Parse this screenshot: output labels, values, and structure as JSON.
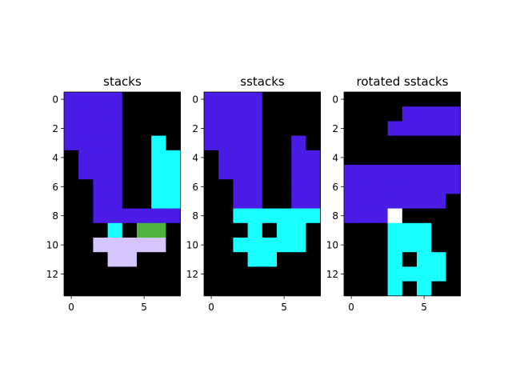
{
  "palette": {
    "0": "#000000",
    "1": "#4a1ce6",
    "2": "#19ffff",
    "3": "#4db33d",
    "4": "#d4c4ff",
    "5": "#ffffff"
  },
  "chart_data": [
    {
      "type": "heatmap",
      "title": "stacks",
      "xticks": [
        0,
        5
      ],
      "yticks": [
        0,
        2,
        4,
        6,
        8,
        10,
        12
      ],
      "xlim": [
        -0.5,
        7.5
      ],
      "ylim": [
        13.5,
        -0.5
      ],
      "grid": [
        [
          1,
          1,
          1,
          1,
          0,
          0,
          0,
          0
        ],
        [
          1,
          1,
          1,
          1,
          0,
          0,
          0,
          0
        ],
        [
          1,
          1,
          1,
          1,
          0,
          0,
          0,
          0
        ],
        [
          1,
          1,
          1,
          1,
          0,
          0,
          2,
          0
        ],
        [
          0,
          1,
          1,
          1,
          0,
          0,
          2,
          2
        ],
        [
          0,
          1,
          1,
          1,
          0,
          0,
          2,
          2
        ],
        [
          0,
          0,
          1,
          1,
          0,
          0,
          2,
          2
        ],
        [
          0,
          0,
          1,
          1,
          0,
          0,
          2,
          2
        ],
        [
          0,
          0,
          1,
          1,
          1,
          1,
          1,
          1
        ],
        [
          0,
          0,
          0,
          2,
          0,
          3,
          3,
          0
        ],
        [
          0,
          0,
          4,
          4,
          4,
          4,
          4,
          0
        ],
        [
          0,
          0,
          0,
          4,
          4,
          0,
          0,
          0
        ],
        [
          0,
          0,
          0,
          0,
          0,
          0,
          0,
          0
        ],
        [
          0,
          0,
          0,
          0,
          0,
          0,
          0,
          0
        ]
      ]
    },
    {
      "type": "heatmap",
      "title": "sstacks",
      "xticks": [
        0,
        5
      ],
      "yticks": [
        0,
        2,
        4,
        6,
        8,
        10,
        12
      ],
      "xlim": [
        -0.5,
        7.5
      ],
      "ylim": [
        13.5,
        -0.5
      ],
      "grid": [
        [
          1,
          1,
          1,
          1,
          0,
          0,
          0,
          0
        ],
        [
          1,
          1,
          1,
          1,
          0,
          0,
          0,
          0
        ],
        [
          1,
          1,
          1,
          1,
          0,
          0,
          0,
          0
        ],
        [
          1,
          1,
          1,
          1,
          0,
          0,
          1,
          0
        ],
        [
          0,
          1,
          1,
          1,
          0,
          0,
          1,
          1
        ],
        [
          0,
          1,
          1,
          1,
          0,
          0,
          1,
          1
        ],
        [
          0,
          0,
          1,
          1,
          0,
          0,
          1,
          1
        ],
        [
          0,
          0,
          1,
          1,
          0,
          0,
          1,
          1
        ],
        [
          0,
          0,
          2,
          2,
          2,
          2,
          2,
          2
        ],
        [
          0,
          0,
          0,
          2,
          0,
          2,
          2,
          0
        ],
        [
          0,
          0,
          2,
          2,
          2,
          2,
          2,
          0
        ],
        [
          0,
          0,
          0,
          2,
          2,
          0,
          0,
          0
        ],
        [
          0,
          0,
          0,
          0,
          0,
          0,
          0,
          0
        ],
        [
          0,
          0,
          0,
          0,
          0,
          0,
          0,
          0
        ]
      ]
    },
    {
      "type": "heatmap",
      "title": "rotated sstacks",
      "xticks": [
        0,
        5
      ],
      "yticks": [
        0,
        2,
        4,
        6,
        8,
        10,
        12
      ],
      "xlim": [
        -0.5,
        7.5
      ],
      "ylim": [
        13.5,
        -0.5
      ],
      "grid": [
        [
          0,
          0,
          0,
          0,
          0,
          0,
          0,
          0
        ],
        [
          0,
          0,
          0,
          0,
          1,
          1,
          1,
          1
        ],
        [
          0,
          0,
          0,
          1,
          1,
          1,
          1,
          1
        ],
        [
          0,
          0,
          0,
          0,
          0,
          0,
          0,
          0
        ],
        [
          0,
          0,
          0,
          0,
          0,
          0,
          0,
          0
        ],
        [
          1,
          1,
          1,
          1,
          1,
          1,
          1,
          1
        ],
        [
          1,
          1,
          1,
          1,
          1,
          1,
          1,
          1
        ],
        [
          1,
          1,
          1,
          1,
          1,
          1,
          1,
          0
        ],
        [
          1,
          1,
          1,
          5,
          0,
          0,
          0,
          0
        ],
        [
          0,
          0,
          0,
          2,
          2,
          2,
          0,
          0
        ],
        [
          0,
          0,
          0,
          2,
          2,
          2,
          0,
          0
        ],
        [
          0,
          0,
          0,
          2,
          0,
          2,
          2,
          0
        ],
        [
          0,
          0,
          0,
          2,
          2,
          2,
          2,
          0
        ],
        [
          0,
          0,
          0,
          2,
          0,
          2,
          0,
          0
        ]
      ]
    }
  ]
}
